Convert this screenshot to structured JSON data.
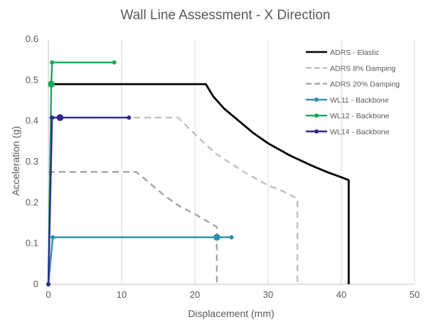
{
  "chart_data": {
    "type": "scatter",
    "title": "Wall Line Assessment - X Direction",
    "xlabel": "Displacement (mm)",
    "ylabel": "Acceleration (g)",
    "xlim": [
      0,
      50
    ],
    "ylim": [
      0,
      0.6
    ],
    "xticks": [
      0,
      10,
      20,
      30,
      40,
      50
    ],
    "yticks": [
      0,
      0.1,
      0.2,
      0.3,
      0.4,
      0.5,
      0.6
    ],
    "xtick_labels": [
      "0",
      "10",
      "20",
      "30",
      "40",
      "50"
    ],
    "ytick_labels": [
      "0",
      "0.1",
      "0.2",
      "0.3",
      "0.4",
      "0.5",
      "0.6"
    ],
    "grid": "vertical",
    "legend_position": "right",
    "series": [
      {
        "name": "ADRS - Elastic",
        "color": "#000000",
        "style": "solid",
        "marker": "none",
        "points": [
          [
            0,
            0.49
          ],
          [
            21.5,
            0.49
          ],
          [
            22.5,
            0.46
          ],
          [
            24,
            0.43
          ],
          [
            26,
            0.4
          ],
          [
            28,
            0.37
          ],
          [
            30,
            0.345
          ],
          [
            33,
            0.315
          ],
          [
            36,
            0.29
          ],
          [
            38,
            0.275
          ],
          [
            40,
            0.262
          ],
          [
            41,
            0.255
          ],
          [
            41,
            0
          ]
        ]
      },
      {
        "name": "ADRS 8% Damping",
        "color": "#bfbfbf",
        "style": "dashed",
        "marker": "none",
        "points": [
          [
            0,
            0.408
          ],
          [
            17.7,
            0.408
          ],
          [
            19,
            0.385
          ],
          [
            21,
            0.35
          ],
          [
            23,
            0.318
          ],
          [
            25,
            0.295
          ],
          [
            27,
            0.272
          ],
          [
            30,
            0.242
          ],
          [
            32,
            0.228
          ],
          [
            34,
            0.21
          ],
          [
            34,
            0
          ]
        ]
      },
      {
        "name": "ADRS 20% Damping",
        "color": "#a6a6a6",
        "style": "dashed",
        "marker": "none",
        "points": [
          [
            0,
            0.275
          ],
          [
            12,
            0.275
          ],
          [
            14,
            0.245
          ],
          [
            16,
            0.215
          ],
          [
            18,
            0.19
          ],
          [
            20,
            0.172
          ],
          [
            23,
            0.14
          ],
          [
            23,
            0
          ]
        ]
      },
      {
        "name": "WL11 - Backbone",
        "color": "#2e8fa8",
        "style": "solid",
        "marker": "circle",
        "points": [
          [
            0,
            0
          ],
          [
            0.6,
            0.115
          ],
          [
            23,
            0.115
          ],
          [
            25,
            0.115
          ]
        ],
        "highlight": [
          23,
          0.115
        ]
      },
      {
        "name": "WL12 - Backbone",
        "color": "#1aa85a",
        "style": "solid",
        "marker": "circle",
        "points": [
          [
            0,
            0
          ],
          [
            0.4,
            0.49
          ],
          [
            0.5,
            0.543
          ],
          [
            9,
            0.543
          ]
        ],
        "highlight": [
          0.4,
          0.49
        ]
      },
      {
        "name": "WL14 - Backbone",
        "color": "#2e2a8a",
        "style": "solid",
        "marker": "circle",
        "points": [
          [
            0,
            0
          ],
          [
            0.5,
            0.408
          ],
          [
            11,
            0.408
          ]
        ],
        "highlight": [
          1.6,
          0.408
        ]
      }
    ]
  }
}
